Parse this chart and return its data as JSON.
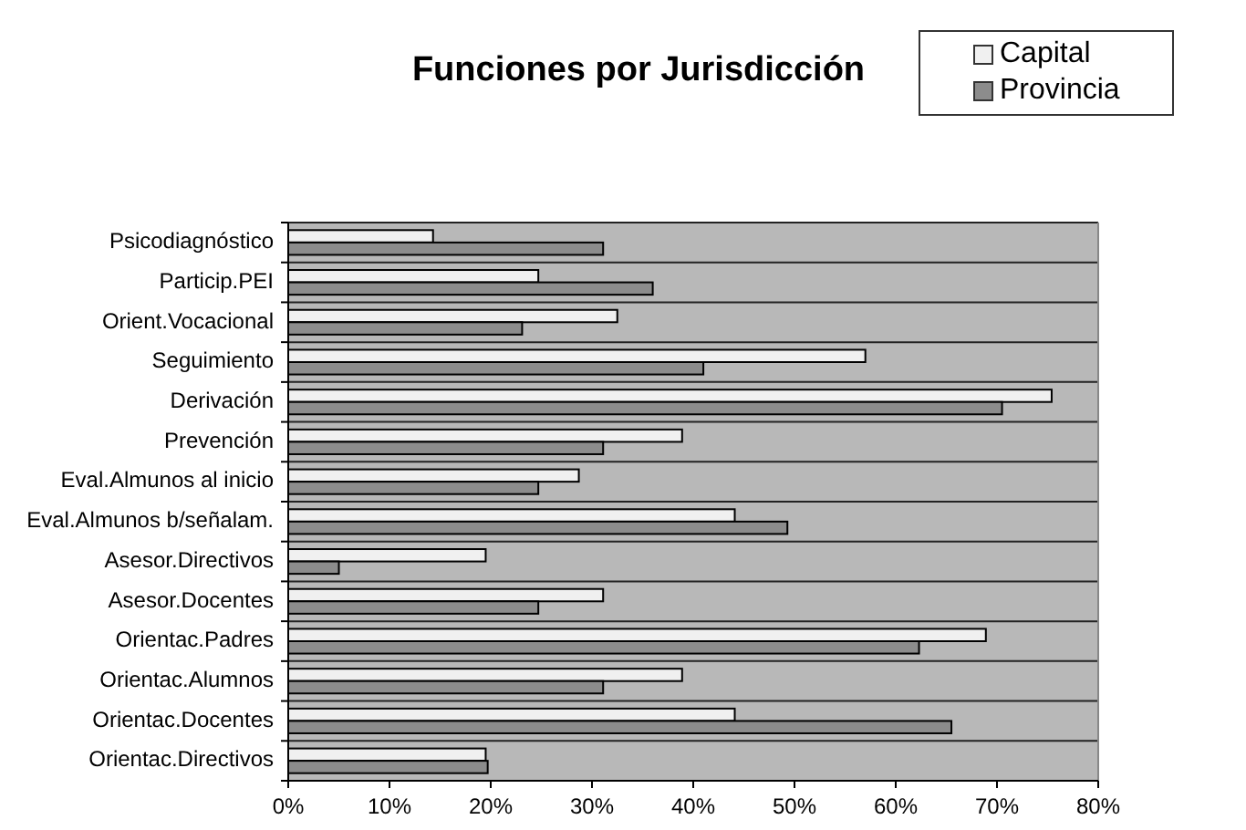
{
  "chart_data": {
    "type": "bar",
    "orientation": "horizontal",
    "title": "Funciones por Jurisdicción",
    "categories": [
      "Psicodiagnóstico",
      "Particip.PEI",
      "Orient.Vocacional",
      "Seguimiento",
      "Derivación",
      "Prevención",
      "Eval.Almunos al inicio",
      "Eval.Almunos b/señalam.",
      "Asesor.Directivos",
      "Asesor.Docentes",
      "Orientac.Padres",
      "Orientac.Alumnos",
      "Orientac.Docentes",
      "Orientac.Directivos"
    ],
    "series": [
      {
        "name": "Capital",
        "color": "#f0f0f0",
        "values": [
          14.3,
          24.7,
          32.5,
          57,
          75.4,
          38.9,
          28.7,
          44.1,
          19.5,
          31.1,
          68.9,
          38.9,
          44.1,
          19.5
        ]
      },
      {
        "name": "Provincia",
        "color": "#8c8c8c",
        "values": [
          31.1,
          36,
          23.1,
          41,
          70.5,
          31.1,
          24.7,
          49.3,
          5,
          24.7,
          62.3,
          31.1,
          65.5,
          19.7
        ]
      }
    ],
    "xlim": [
      0,
      80
    ],
    "xticks": [
      {
        "value": 0,
        "label": "0%"
      },
      {
        "value": 10,
        "label": "10%"
      },
      {
        "value": 20,
        "label": "20%"
      },
      {
        "value": 30,
        "label": "30%"
      },
      {
        "value": 40,
        "label": "40%"
      },
      {
        "value": 50,
        "label": "50%"
      },
      {
        "value": 60,
        "label": "60%"
      },
      {
        "value": 70,
        "label": "70%"
      },
      {
        "value": 80,
        "label": "80%"
      }
    ],
    "grid": "y",
    "legend": "top right"
  }
}
